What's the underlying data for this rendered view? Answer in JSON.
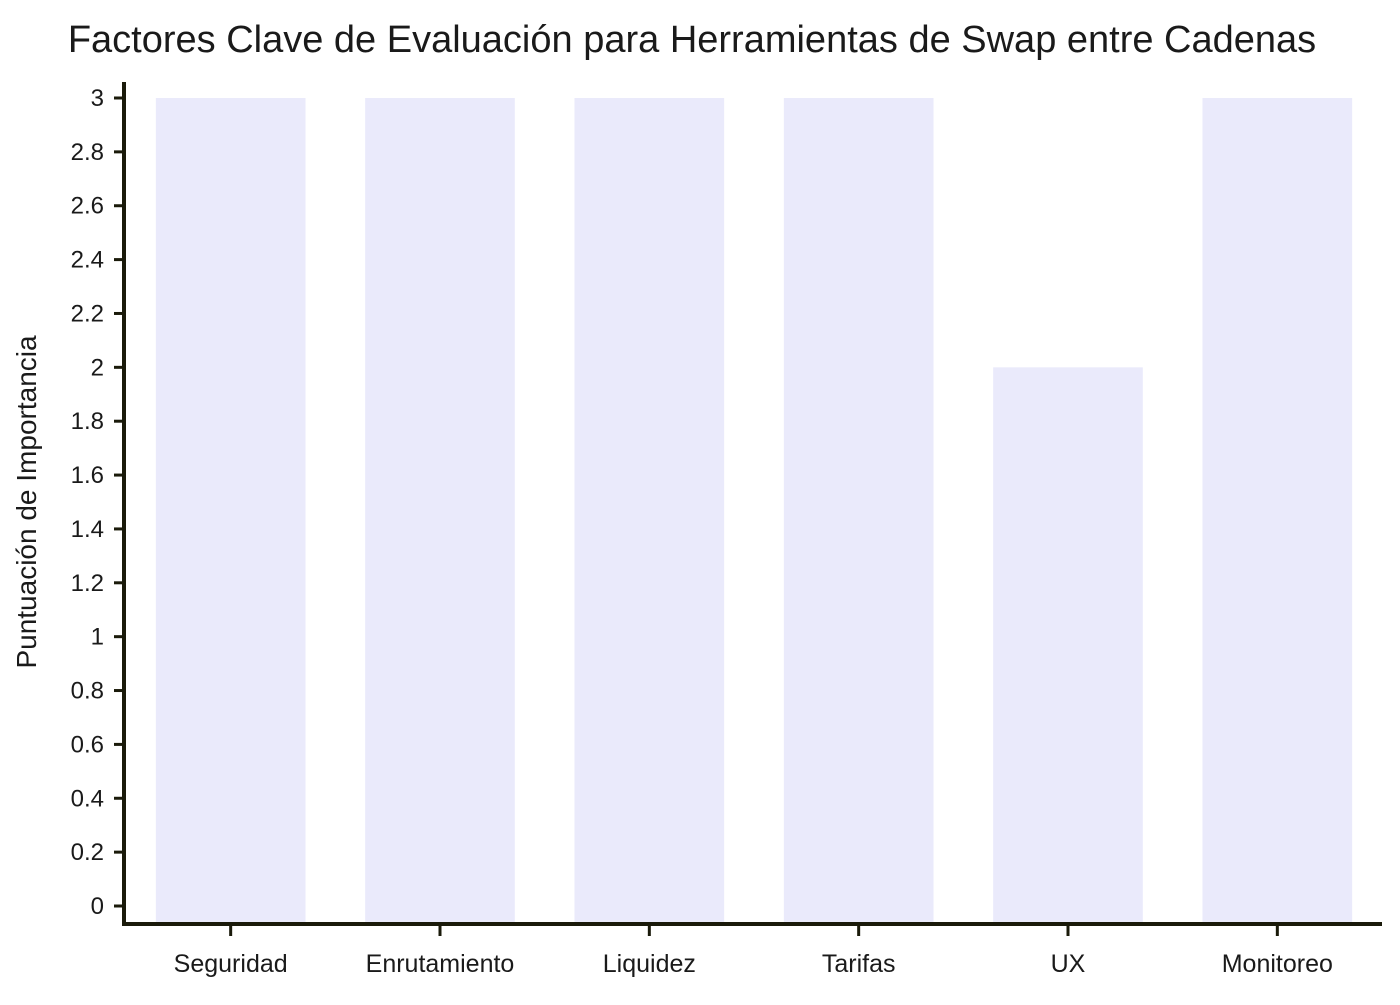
{
  "chart_data": {
    "type": "bar",
    "title": "Factores Clave de Evaluación para Herramientas de Swap entre Cadenas",
    "xlabel": "",
    "ylabel": "Puntuación de Importancia",
    "categories": [
      "Seguridad",
      "Enrutamiento",
      "Liquidez",
      "Tarifas",
      "UX",
      "Monitoreo"
    ],
    "values": [
      3,
      3,
      3,
      3,
      2,
      3
    ],
    "ylim": [
      0,
      3
    ],
    "yticks": [
      {
        "value": 0,
        "label": "0"
      },
      {
        "value": 0.2,
        "label": "0.2"
      },
      {
        "value": 0.4,
        "label": "0.4"
      },
      {
        "value": 0.6,
        "label": "0.6"
      },
      {
        "value": 0.8,
        "label": "0.8"
      },
      {
        "value": 1,
        "label": "1"
      },
      {
        "value": 1.2,
        "label": "1.2"
      },
      {
        "value": 1.4,
        "label": "1.4"
      },
      {
        "value": 1.6,
        "label": "1.6"
      },
      {
        "value": 1.8,
        "label": "1.8"
      },
      {
        "value": 2,
        "label": "2"
      },
      {
        "value": 2.2,
        "label": "2.2"
      },
      {
        "value": 2.4,
        "label": "2.4"
      },
      {
        "value": 2.6,
        "label": "2.6"
      },
      {
        "value": 2.8,
        "label": "2.8"
      },
      {
        "value": 3,
        "label": "3"
      }
    ],
    "grid": false,
    "colors": {
      "bar": "#eaeafb",
      "axis": "#1a1a0a",
      "text": "#1a1a1a"
    }
  }
}
